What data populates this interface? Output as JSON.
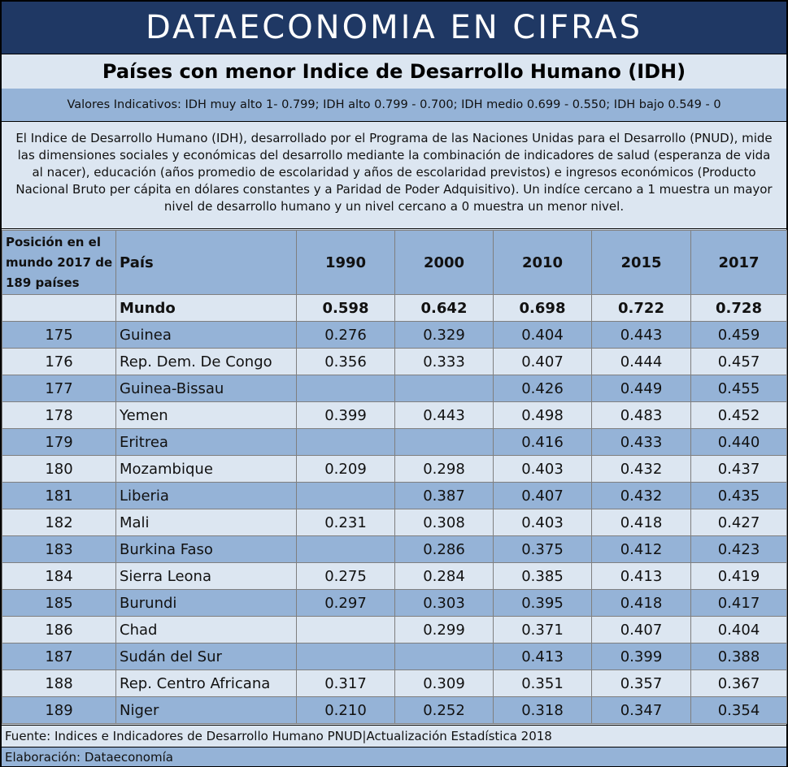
{
  "banner": {
    "title": "DATAECONOMIA EN CIFRAS"
  },
  "title": "Países con menor Indice de Desarrollo Humano (IDH)",
  "values_note": "Valores Indicativos: IDH muy alto 1- 0.799; IDH alto 0.799 - 0.700; IDH medio 0.699 - 0.550; IDH bajo  0.549 - 0",
  "description": "El Indice de Desarrollo Humano (IDH), desarrollado por el Programa de las Naciones Unidas para el Desarrollo (PNUD), mide las dimensiones sociales y económicas del desarrollo mediante la combinación de indicadores  de salud (esperanza de vida al nacer), educación (años promedio de escolaridad y años de escolaridad previstos) e ingresos económicos (Producto Nacional Bruto per cápita en dólares constantes y a Paridad de Poder Adquisitivo).  Un indíce cercano a 1 muestra un mayor nivel de desarrollo humano y un nivel cercano a 0 muestra un menor nivel.",
  "table": {
    "headers": {
      "position": "Posición en el mundo 2017 de 189 países",
      "country": "País",
      "years": [
        "1990",
        "2000",
        "2010",
        "2015",
        "2017"
      ]
    },
    "world": {
      "rank": "",
      "country": "Mundo",
      "values": [
        "0.598",
        "0.642",
        "0.698",
        "0.722",
        "0.728"
      ]
    },
    "rows": [
      {
        "rank": "175",
        "country": "Guinea",
        "values": [
          "0.276",
          "0.329",
          "0.404",
          "0.443",
          "0.459"
        ]
      },
      {
        "rank": "176",
        "country": "Rep. Dem. De Congo",
        "values": [
          "0.356",
          "0.333",
          "0.407",
          "0.444",
          "0.457"
        ]
      },
      {
        "rank": "177",
        "country": "Guinea-Bissau",
        "values": [
          "",
          "",
          "0.426",
          "0.449",
          "0.455"
        ]
      },
      {
        "rank": "178",
        "country": "Yemen",
        "values": [
          "0.399",
          "0.443",
          "0.498",
          "0.483",
          "0.452"
        ]
      },
      {
        "rank": "179",
        "country": "Eritrea",
        "values": [
          "",
          "",
          "0.416",
          "0.433",
          "0.440"
        ]
      },
      {
        "rank": "180",
        "country": "Mozambique",
        "values": [
          "0.209",
          "0.298",
          "0.403",
          "0.432",
          "0.437"
        ]
      },
      {
        "rank": "181",
        "country": "Liberia",
        "values": [
          "",
          "0.387",
          "0.407",
          "0.432",
          "0.435"
        ]
      },
      {
        "rank": "182",
        "country": "Mali",
        "values": [
          "0.231",
          "0.308",
          "0.403",
          "0.418",
          "0.427"
        ]
      },
      {
        "rank": "183",
        "country": "Burkina Faso",
        "values": [
          "",
          "0.286",
          "0.375",
          "0.412",
          "0.423"
        ]
      },
      {
        "rank": "184",
        "country": "Sierra Leona",
        "values": [
          "0.275",
          "0.284",
          "0.385",
          "0.413",
          "0.419"
        ]
      },
      {
        "rank": "185",
        "country": "Burundi",
        "values": [
          "0.297",
          "0.303",
          "0.395",
          "0.418",
          "0.417"
        ]
      },
      {
        "rank": "186",
        "country": "Chad",
        "values": [
          "",
          "0.299",
          "0.371",
          "0.407",
          "0.404"
        ]
      },
      {
        "rank": "187",
        "country": "Sudán del Sur",
        "values": [
          "",
          "",
          "0.413",
          "0.399",
          "0.388"
        ]
      },
      {
        "rank": "188",
        "country": "Rep. Centro Africana",
        "values": [
          "0.317",
          "0.309",
          "0.351",
          "0.357",
          "0.367"
        ]
      },
      {
        "rank": "189",
        "country": "Niger",
        "values": [
          "0.210",
          "0.252",
          "0.318",
          "0.347",
          "0.354"
        ]
      }
    ]
  },
  "footer": {
    "source": "Fuente: Indices e Indicadores de Desarrollo Humano PNUD|Actualización Estadística 2018",
    "credit": "Elaboración: Dataeconomía"
  }
}
